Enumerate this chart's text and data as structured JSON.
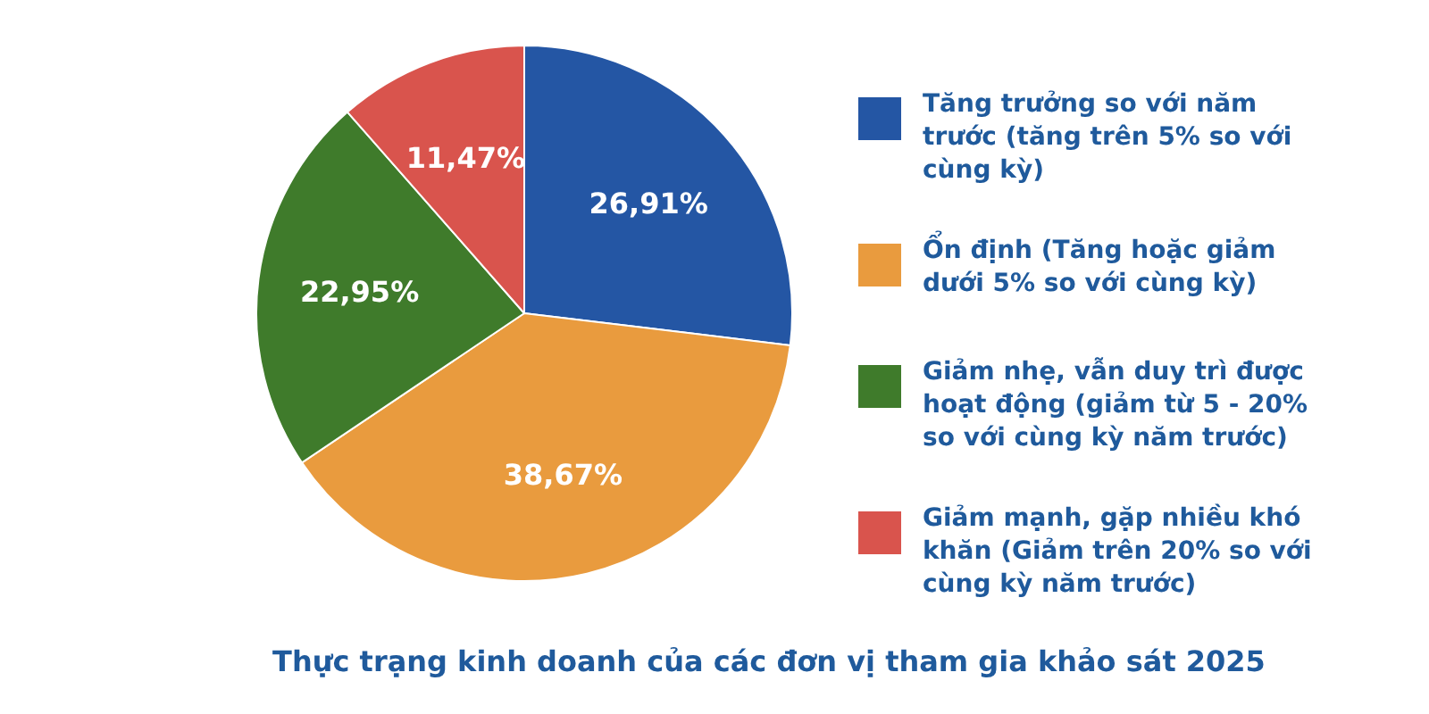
{
  "chart_data": {
    "type": "pie",
    "title": "Thực trạng kinh doanh của các đơn vị tham gia khảo sát 2025",
    "categories": [
      "Tăng trưởng so với năm trước (tăng trên 5% so với cùng kỳ)",
      "Ổn định (Tăng hoặc giảm dưới 5% so với cùng kỳ)",
      "Giảm nhẹ, vẫn duy trì được hoạt động (giảm từ 5 - 20% so với cùng kỳ năm trước)",
      "Giảm mạnh, gặp nhiều khó khăn (Giảm trên 20% so với cùng kỳ năm trước)"
    ],
    "values": [
      26.91,
      38.67,
      22.95,
      11.47
    ],
    "colors": [
      "#2456a4",
      "#e99b3e",
      "#3f7b2b",
      "#d9544d"
    ],
    "value_labels": [
      "26,91%",
      "38,67%",
      "22,95%",
      "11,47%"
    ],
    "legend": "right"
  }
}
